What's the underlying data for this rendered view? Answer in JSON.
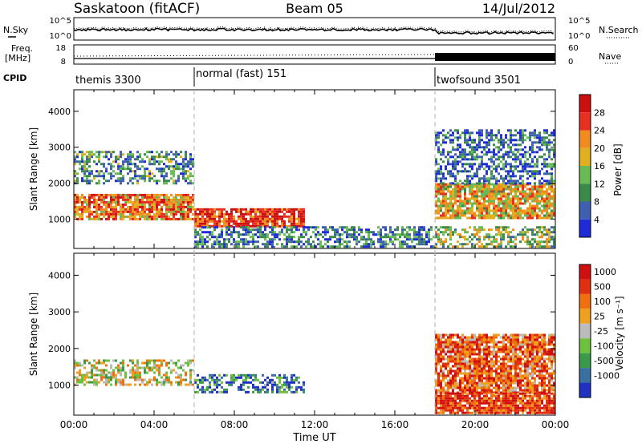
{
  "header": {
    "radar": "Saskatoon (fitACF)",
    "beam": "Beam 05",
    "date": "14/Jul/2012"
  },
  "strip1": {
    "left_label": "N.Sky",
    "right_label": "N.Search",
    "left_ticks": [
      "10^5",
      "10^0"
    ],
    "right_ticks": [
      "10^5",
      "10^0"
    ]
  },
  "strip2": {
    "left_label_1": "Freq.",
    "left_label_2": "[MHz]",
    "right_label": "Nave",
    "left_ticks": [
      "18",
      "8"
    ],
    "right_ticks": [
      "60",
      "0"
    ]
  },
  "cpid": {
    "label": "CPID",
    "segments": [
      {
        "name": "themis 3300",
        "start_hour": 0
      },
      {
        "name": "normal (fast) 151",
        "start_hour": 6
      },
      {
        "name": "twofsound 3501",
        "start_hour": 18
      }
    ]
  },
  "chart_data": [
    {
      "type": "heatmap",
      "title": "",
      "ylabel": "Slant Range [km]",
      "xlabel": "",
      "xlim": [
        0,
        24
      ],
      "ylim": [
        180,
        4600
      ],
      "y_ticks": [
        "1000",
        "2000",
        "3000",
        "4000"
      ],
      "y_tick_values": [
        1000,
        2000,
        3000,
        4000
      ],
      "colorbar": {
        "label": "Power [dB]",
        "ticks": [
          "4",
          "8",
          "12",
          "16",
          "20",
          "24",
          "28"
        ],
        "colors": [
          "#1f2bd8",
          "#3f5fb0",
          "#3a8a4a",
          "#66bb55",
          "#e0b020",
          "#f28a20",
          "#e83020",
          "#cc1010"
        ]
      },
      "regions": [
        {
          "t0": 0.0,
          "t1": 6.0,
          "r0": 1000,
          "r1": 1700,
          "level": 0.7
        },
        {
          "t0": 0.0,
          "t1": 6.0,
          "r0": 2000,
          "r1": 2900,
          "level": 0.3
        },
        {
          "t0": 6.0,
          "t1": 11.5,
          "r0": 800,
          "r1": 1300,
          "level": 0.85
        },
        {
          "t0": 6.0,
          "t1": 18.0,
          "r0": 250,
          "r1": 800,
          "level": 0.25
        },
        {
          "t0": 18.0,
          "t1": 24.0,
          "r0": 1000,
          "r1": 2000,
          "level": 0.6
        },
        {
          "t0": 18.0,
          "t1": 24.0,
          "r0": 2000,
          "r1": 3500,
          "level": 0.2
        },
        {
          "t0": 18.0,
          "t1": 24.0,
          "r0": 250,
          "r1": 800,
          "level": 0.45
        }
      ]
    },
    {
      "type": "heatmap",
      "title": "",
      "ylabel": "Slant Range [km]",
      "xlabel": "Time UT",
      "xlim": [
        0,
        24
      ],
      "ylim": [
        180,
        4600
      ],
      "x_ticks": [
        "00:00",
        "04:00",
        "08:00",
        "12:00",
        "16:00",
        "20:00",
        "00:00"
      ],
      "x_tick_values": [
        0,
        4,
        8,
        12,
        16,
        20,
        24
      ],
      "y_ticks": [
        "1000",
        "2000",
        "3000",
        "4000"
      ],
      "y_tick_values": [
        1000,
        2000,
        3000,
        4000
      ],
      "colorbar": {
        "label": "Velocity [m s⁻¹]",
        "ticks": [
          "1000",
          "500",
          "100",
          "25",
          "-25",
          "-100",
          "-500",
          "-1000"
        ],
        "colors": [
          "#2030c0",
          "#3a70a0",
          "#3a9a4a",
          "#70c040",
          "#bbbbbb",
          "#f0a020",
          "#f07010",
          "#e03010",
          "#d01010"
        ]
      },
      "regions": [
        {
          "t0": 0.0,
          "t1": 6.0,
          "r0": 1000,
          "r1": 1700,
          "level": 0.5
        },
        {
          "t0": 6.0,
          "t1": 11.5,
          "r0": 800,
          "r1": 1300,
          "level": 0.2
        },
        {
          "t0": 18.0,
          "t1": 24.0,
          "r0": 800,
          "r1": 2400,
          "level": 0.75
        },
        {
          "t0": 18.0,
          "t1": 24.0,
          "r0": 250,
          "r1": 800,
          "level": 0.85
        }
      ]
    }
  ],
  "colors": {
    "axis": "#000000",
    "separator": "#b0b0b0"
  }
}
